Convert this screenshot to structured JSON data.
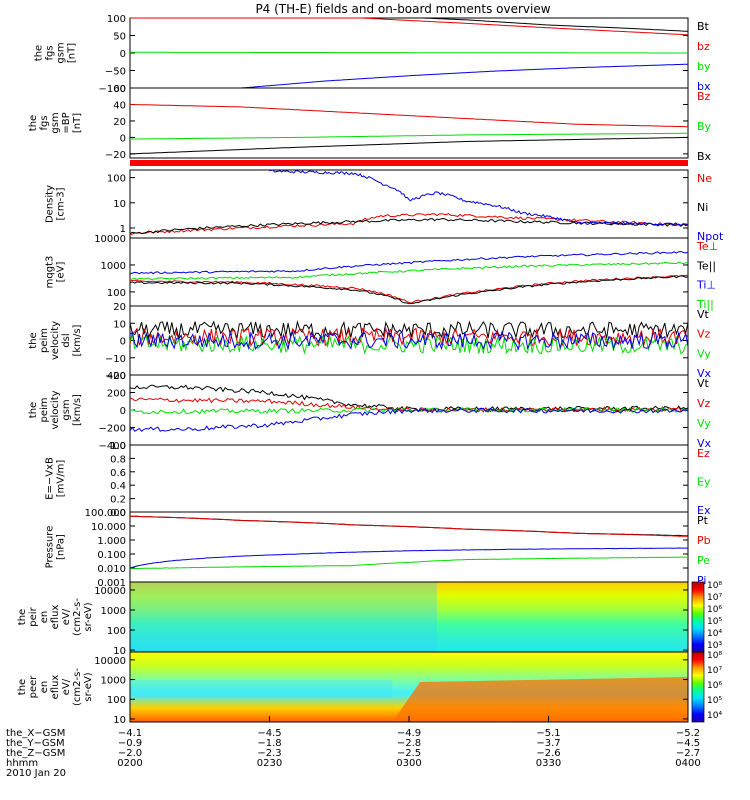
{
  "title": "P4 (TH-E) fields and on-board moments overview",
  "colors": {
    "black": "#000000",
    "red": "#e00000",
    "green": "#00dd00",
    "blue": "#0000e0"
  },
  "colorbar_stops": [
    "#1e00b4",
    "#0000ff",
    "#0078ff",
    "#00dcff",
    "#00ffa0",
    "#5aff00",
    "#ffff00",
    "#ff9600",
    "#ff0000",
    "#b40000"
  ],
  "chart_data": [
    {
      "type": "line",
      "ylabel": [
        "the",
        "fgs",
        "gsm",
        "[nT]"
      ],
      "yticks": [
        "100",
        "50",
        "0",
        "−50",
        "−100"
      ],
      "ylim": [
        -100,
        100
      ],
      "yscale": "linear",
      "series": [
        {
          "name": "Bt",
          "color": "red_black",
          "x": [
            0,
            0.3,
            0.45,
            0.6,
            0.75,
            0.9,
            1.0
          ],
          "y": [
            120,
            112,
            105,
            95,
            80,
            70,
            62
          ]
        },
        {
          "name": "bz",
          "color": "red",
          "x": [
            0,
            0.3,
            0.45,
            0.6,
            0.75,
            0.9,
            1.0
          ],
          "y": [
            120,
            110,
            97,
            85,
            72,
            60,
            52
          ]
        },
        {
          "name": "by",
          "color": "green",
          "x": [
            0,
            0.5,
            1.0
          ],
          "y": [
            2,
            1,
            0
          ]
        },
        {
          "name": "bx",
          "color": "blue",
          "x": [
            0.2,
            0.35,
            0.5,
            0.65,
            0.8,
            1.0
          ],
          "y": [
            -100,
            -80,
            -65,
            -52,
            -42,
            -32
          ]
        }
      ]
    },
    {
      "type": "line",
      "ylabel": [
        "the",
        "fgs",
        "gsm",
        "=BP",
        "[nT]"
      ],
      "yticks": [
        "60",
        "40",
        "20",
        "0",
        "−20"
      ],
      "ylim": [
        -25,
        60
      ],
      "yscale": "linear",
      "series": [
        {
          "name": "Bz",
          "color": "red",
          "x": [
            0,
            0.2,
            0.4,
            0.6,
            0.8,
            1.0
          ],
          "y": [
            40,
            37,
            30,
            23,
            16,
            13
          ]
        },
        {
          "name": "By",
          "color": "green",
          "x": [
            0,
            0.3,
            0.6,
            1.0
          ],
          "y": [
            -2,
            0,
            3,
            5
          ]
        },
        {
          "name": "Bx",
          "color": "black",
          "x": [
            0,
            0.3,
            0.6,
            1.0
          ],
          "y": [
            -20,
            -12,
            -5,
            0
          ]
        }
      ]
    },
    {
      "type": "line",
      "ylabel": [
        "Density",
        "[cm-3]"
      ],
      "yticks": [
        "100",
        "10",
        "1"
      ],
      "ylim": [
        0.4,
        200
      ],
      "yscale": "log",
      "series": [
        {
          "name": "Ne",
          "color": "red",
          "x": [
            0,
            0.2,
            0.4,
            0.45,
            0.55,
            0.7,
            0.85,
            1.0
          ],
          "y": [
            0.6,
            1.0,
            1.5,
            3.0,
            3.5,
            2.5,
            1.8,
            1.3
          ]
        },
        {
          "name": "Ni",
          "color": "black",
          "x": [
            0,
            0.2,
            0.4,
            0.55,
            0.7,
            0.85,
            1.0
          ],
          "y": [
            0.6,
            1.2,
            1.8,
            2.2,
            1.8,
            1.5,
            1.3
          ]
        },
        {
          "name": "Npot",
          "color": "blue",
          "x": [
            0.25,
            0.4,
            0.45,
            0.5,
            0.55,
            0.6,
            0.7,
            0.8,
            1.0
          ],
          "y": [
            180,
            150,
            60,
            12,
            25,
            12,
            4,
            1.6,
            1.4
          ]
        }
      ]
    },
    {
      "type": "line",
      "ylabel": [
        "mqgt3",
        "[eV]"
      ],
      "yticks": [
        "10000",
        "1000",
        "100"
      ],
      "ylim": [
        30,
        10000
      ],
      "yscale": "log",
      "series": [
        {
          "name": "Te⊥",
          "color": "red",
          "x": [
            0,
            0.2,
            0.4,
            0.5,
            0.55,
            0.65,
            0.8,
            1.0
          ],
          "y": [
            250,
            230,
            140,
            40,
            60,
            120,
            250,
            400
          ]
        },
        {
          "name": "Te||",
          "color": "black",
          "x": [
            0,
            0.2,
            0.4,
            0.5,
            0.55,
            0.65,
            0.8,
            1.0
          ],
          "y": [
            220,
            210,
            120,
            35,
            55,
            110,
            230,
            380
          ]
        },
        {
          "name": "Ti⊥",
          "color": "blue",
          "x": [
            0,
            0.3,
            0.5,
            0.7,
            1.0
          ],
          "y": [
            500,
            600,
            1200,
            2000,
            3000
          ]
        },
        {
          "name": "Ti||",
          "color": "green",
          "x": [
            0,
            0.3,
            0.5,
            0.7,
            1.0
          ],
          "y": [
            300,
            350,
            600,
            900,
            1200
          ]
        }
      ]
    },
    {
      "type": "line",
      "ylabel": [
        "the",
        "peim",
        "velocity",
        "dsl",
        "[km/s]"
      ],
      "yticks": [
        "20",
        "10",
        "0",
        "−10",
        "−20"
      ],
      "ylim": [
        -20,
        20
      ],
      "yscale": "linear",
      "series": [
        {
          "name": "Vt",
          "color": "black",
          "x": [
            0,
            1
          ],
          "y": [
            6,
            6
          ]
        },
        {
          "name": "Vz",
          "color": "red",
          "x": [
            0,
            1
          ],
          "y": [
            2,
            2
          ]
        },
        {
          "name": "Vy",
          "color": "green",
          "x": [
            0,
            1
          ],
          "y": [
            -2,
            -3
          ]
        },
        {
          "name": "Vx",
          "color": "blue",
          "x": [
            0,
            1
          ],
          "y": [
            0,
            0
          ]
        }
      ]
    },
    {
      "type": "line",
      "ylabel": [
        "the",
        "peim",
        "velocity",
        "gsm",
        "[km/s]"
      ],
      "yticks": [
        "400",
        "200",
        "0",
        "−200",
        "−400"
      ],
      "ylim": [
        -400,
        400
      ],
      "yscale": "linear",
      "series": [
        {
          "name": "Vt",
          "color": "black",
          "x": [
            0,
            0.1,
            0.25,
            0.4,
            0.5,
            1.0
          ],
          "y": [
            260,
            260,
            200,
            60,
            10,
            20
          ]
        },
        {
          "name": "Vz",
          "color": "red",
          "x": [
            0,
            0.25,
            0.45,
            0.5,
            1.0
          ],
          "y": [
            120,
            100,
            10,
            0,
            10
          ]
        },
        {
          "name": "Vy",
          "color": "green",
          "x": [
            0,
            0.25,
            0.45,
            0.5,
            1.0
          ],
          "y": [
            -20,
            -10,
            0,
            0,
            0
          ]
        },
        {
          "name": "Vx",
          "color": "blue",
          "x": [
            0,
            0.1,
            0.25,
            0.4,
            0.5,
            1.0
          ],
          "y": [
            -220,
            -220,
            -170,
            -50,
            -5,
            -10
          ]
        }
      ]
    },
    {
      "type": "line",
      "ylabel": [
        "E=−VxB",
        "[mV/m]"
      ],
      "yticks": [
        "1.0",
        "0.8",
        "0.6",
        "0.4",
        "0.2",
        "0.0"
      ],
      "ylim": [
        0,
        1
      ],
      "yscale": "linear",
      "series": [
        {
          "name": "Ez",
          "color": "red",
          "x": [],
          "y": []
        },
        {
          "name": "Ey",
          "color": "green",
          "x": [],
          "y": []
        },
        {
          "name": "Ex",
          "color": "blue",
          "x": [],
          "y": []
        }
      ]
    },
    {
      "type": "line",
      "ylabel": [
        "Pressure",
        "[nPa]"
      ],
      "yticks": [
        "100.000",
        "10.000",
        "1.000",
        "0.100",
        "0.010",
        "0.001"
      ],
      "ylim": [
        0.001,
        100
      ],
      "yscale": "log",
      "series": [
        {
          "name": "Pt",
          "color": "black",
          "x": [
            0,
            0.2,
            0.4,
            0.6,
            0.8,
            1.0
          ],
          "y": [
            50,
            25,
            12,
            6,
            3,
            2
          ]
        },
        {
          "name": "Pb",
          "color": "red",
          "x": [
            0,
            0.2,
            0.4,
            0.6,
            0.8,
            1.0
          ],
          "y": [
            50,
            25,
            12,
            6,
            3,
            1.8
          ]
        },
        {
          "name": "Pe",
          "color": "green",
          "x": [
            0,
            0.2,
            0.4,
            0.5,
            0.6,
            0.8,
            1.0
          ],
          "y": [
            0.009,
            0.012,
            0.015,
            0.025,
            0.04,
            0.05,
            0.06
          ]
        },
        {
          "name": "Pi",
          "color": "blue",
          "x": [
            0,
            0.1,
            0.3,
            0.5,
            0.7,
            0.9,
            1.0
          ],
          "y": [
            0.01,
            0.04,
            0.1,
            0.17,
            0.22,
            0.25,
            0.27
          ]
        }
      ]
    },
    {
      "type": "heatmap",
      "ylabel": [
        "the",
        "peir",
        "en",
        "eflux",
        "eV/",
        "(cm2-s-",
        "sr-eV)"
      ],
      "yticks": [
        "10000",
        "1000",
        "100",
        "10"
      ],
      "ylim": [
        8,
        25000
      ],
      "yscale": "log",
      "colorbar_ticks": [
        "10⁸",
        "10⁷",
        "10⁶",
        "10⁵",
        "10⁴",
        "10³"
      ]
    },
    {
      "type": "heatmap",
      "ylabel": [
        "the",
        "peer",
        "en",
        "eflux",
        "eV/",
        "(cm2-s-",
        "sr-eV)"
      ],
      "yticks": [
        "10000",
        "1000",
        "100",
        "10"
      ],
      "ylim": [
        7,
        25000
      ],
      "yscale": "log",
      "colorbar_ticks": [
        "10⁸",
        "10⁷",
        "10⁶",
        "10⁵",
        "10⁴"
      ]
    }
  ],
  "x_axis": {
    "row_labels": [
      "the_X−GSM",
      "the_Y−GSM",
      "the_Z−GSM",
      "hhmm",
      "2010 Jan 20"
    ],
    "ticks": [
      {
        "frac": 0.0,
        "values": [
          "−4.1",
          "−0.9",
          "−2.0",
          "0200"
        ]
      },
      {
        "frac": 0.25,
        "values": [
          "−4.5",
          "−1.8",
          "−2.3",
          "0230"
        ]
      },
      {
        "frac": 0.5,
        "values": [
          "−4.9",
          "−2.8",
          "−2.5",
          "0300"
        ]
      },
      {
        "frac": 0.75,
        "values": [
          "−5.1",
          "−3.7",
          "−2.6",
          "0330"
        ]
      },
      {
        "frac": 1.0,
        "values": [
          "−5.2",
          "−4.5",
          "−2.7",
          "0400"
        ]
      }
    ]
  }
}
